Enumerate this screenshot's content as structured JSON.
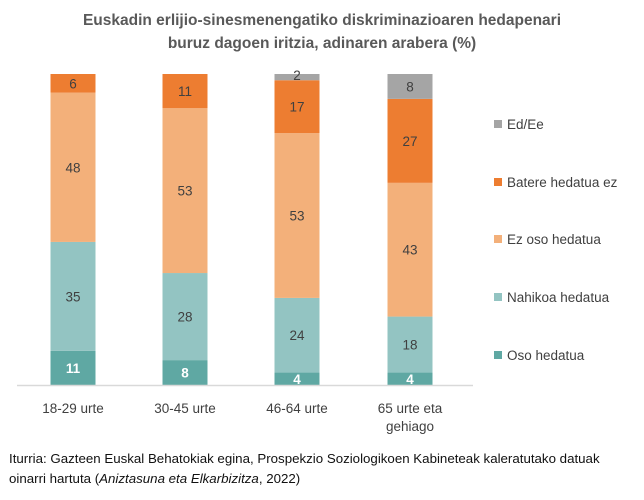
{
  "chart_data": {
    "type": "bar",
    "stacked": true,
    "title_lines": [
      "Euskadin erlijio-sinesmenengatiko diskriminazioaren hedapenari",
      "buruz dagoen iritzia, adinaren arabera (%)"
    ],
    "categories": [
      "18-29 urte",
      "30-45 urte",
      "46-64 urte",
      "65 urte eta gehiago"
    ],
    "category_lines": [
      [
        "18-29 urte"
      ],
      [
        "30-45 urte"
      ],
      [
        "46-64 urte"
      ],
      [
        "65 urte eta",
        "gehiago"
      ]
    ],
    "series": [
      {
        "name": "Oso hedatua",
        "color": "#5fa8a3",
        "label_color": "#ffffff",
        "values": [
          11,
          8,
          4,
          4
        ]
      },
      {
        "name": "Nahikoa hedatua",
        "color": "#93c4c2",
        "label_color": "#404040",
        "values": [
          35,
          28,
          24,
          18
        ]
      },
      {
        "name": "Ez oso hedatua",
        "color": "#f3b07a",
        "label_color": "#404040",
        "values": [
          48,
          53,
          53,
          43
        ]
      },
      {
        "name": "Batere hedatua ez",
        "color": "#ed7d31",
        "label_color": "#404040",
        "values": [
          6,
          11,
          17,
          27
        ]
      },
      {
        "name": "Ed/Ee",
        "color": "#a5a5a5",
        "label_color": "#404040",
        "values": [
          0,
          0,
          2,
          8
        ]
      }
    ],
    "ylim": [
      0,
      100
    ],
    "grid": false,
    "legend_position": "right"
  },
  "source": {
    "prefix": "Iturria: Gazteen Euskal Behatokiak egina, Prospekzio Soziologikoen Kabineteak kaleratutako datuak oinarri hartuta (",
    "italic": "Aniztasuna eta Elkarbizitza",
    "suffix": ", 2022)"
  }
}
